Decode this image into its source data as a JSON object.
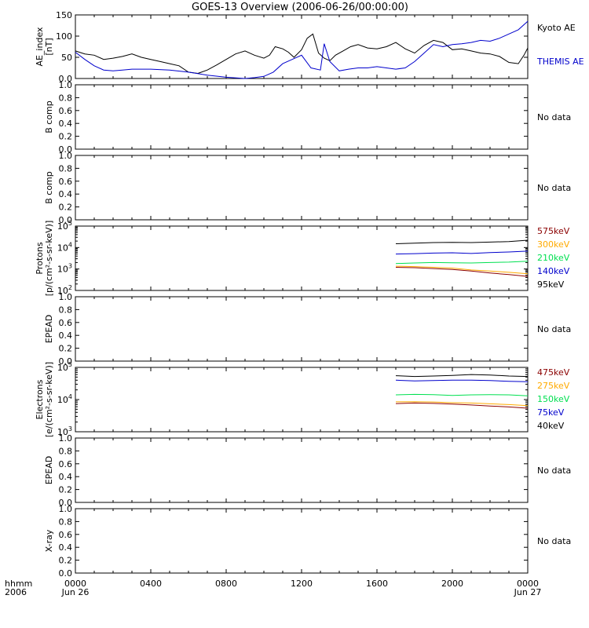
{
  "title": "GOES-13 Overview (2006-06-26/00:00:00)",
  "colors": {
    "black": "#000000",
    "blue": "#0000cc",
    "green": "#00e050",
    "orange": "#ffaa00",
    "darkred": "#8b0000"
  },
  "x_axis": {
    "corner_labels": [
      "hhmm",
      "2006"
    ],
    "ticks": [
      {
        "hours": 0,
        "line1": "0000",
        "line2": "Jun 26"
      },
      {
        "hours": 4,
        "line1": "0400",
        "line2": ""
      },
      {
        "hours": 8,
        "line1": "0800",
        "line2": ""
      },
      {
        "hours": 12,
        "line1": "1200",
        "line2": ""
      },
      {
        "hours": 16,
        "line1": "1600",
        "line2": ""
      },
      {
        "hours": 20,
        "line1": "2000",
        "line2": ""
      },
      {
        "hours": 24,
        "line1": "0000",
        "line2": "Jun 27"
      }
    ],
    "range_hours": [
      0,
      24
    ]
  },
  "chart_data": [
    {
      "type": "line",
      "ylabel": [
        "AE_index",
        "[nT]"
      ],
      "ylim": [
        0,
        150
      ],
      "yticks": [
        0,
        50,
        100,
        150
      ],
      "right_labels": [
        {
          "text": "Kyoto AE",
          "color": "#000000"
        },
        {
          "text": "THEMIS AE",
          "color": "#0000cc"
        }
      ],
      "series": [
        {
          "name": "Kyoto AE",
          "color": "#000000",
          "x": [
            0,
            0.5,
            1,
            1.5,
            2,
            2.5,
            3,
            3.5,
            4,
            4.5,
            5,
            5.5,
            6,
            6.5,
            7,
            7.5,
            8,
            8.5,
            9,
            9.5,
            10,
            10.3,
            10.6,
            11,
            11.3,
            11.6,
            12,
            12.3,
            12.6,
            12.9,
            13.2,
            13.5,
            13.8,
            14.2,
            14.6,
            15,
            15.5,
            16,
            16.5,
            17,
            17.5,
            18,
            18.5,
            19,
            19.5,
            20,
            20.5,
            21,
            21.5,
            22,
            22.5,
            23,
            23.5,
            23.8,
            24
          ],
          "y": [
            65,
            58,
            55,
            45,
            48,
            52,
            58,
            50,
            45,
            40,
            35,
            30,
            15,
            12,
            20,
            32,
            45,
            58,
            65,
            55,
            48,
            55,
            75,
            70,
            62,
            50,
            68,
            95,
            105,
            60,
            48,
            42,
            55,
            65,
            75,
            80,
            72,
            70,
            75,
            85,
            70,
            60,
            78,
            90,
            85,
            68,
            70,
            65,
            60,
            58,
            52,
            38,
            35,
            55,
            72
          ]
        },
        {
          "name": "THEMIS AE",
          "color": "#0000cc",
          "x": [
            0,
            0.5,
            1,
            1.5,
            2,
            2.5,
            3,
            4,
            5,
            6,
            7,
            8,
            9,
            9.5,
            10,
            10.5,
            11,
            11.5,
            12,
            12.5,
            13,
            13.2,
            13.5,
            14,
            14.5,
            15,
            15.5,
            16,
            16.5,
            17,
            17.5,
            18,
            18.5,
            19,
            19.5,
            20,
            20.5,
            21,
            21.5,
            22,
            22.5,
            23,
            23.5,
            24
          ],
          "y": [
            62,
            45,
            30,
            20,
            18,
            20,
            22,
            22,
            20,
            15,
            8,
            3,
            0,
            2,
            5,
            15,
            35,
            45,
            55,
            25,
            20,
            82,
            40,
            18,
            22,
            25,
            25,
            28,
            25,
            22,
            25,
            40,
            60,
            80,
            75,
            80,
            82,
            85,
            90,
            88,
            95,
            105,
            115,
            135
          ]
        }
      ]
    },
    {
      "type": "line",
      "ylabel": [
        "B comp"
      ],
      "ylim": [
        0,
        1
      ],
      "yticks": [
        0,
        0.2,
        0.4,
        0.6,
        0.8,
        1
      ],
      "right_labels": [
        {
          "text": "No data",
          "color": "#000000"
        }
      ],
      "series": []
    },
    {
      "type": "line",
      "ylabel": [
        "B comp"
      ],
      "ylim": [
        0,
        1
      ],
      "yticks": [
        0,
        0.2,
        0.4,
        0.6,
        0.8,
        1
      ],
      "right_labels": [
        {
          "text": "No data",
          "color": "#000000"
        }
      ],
      "series": []
    },
    {
      "type": "line",
      "scale": "log",
      "ylabel": [
        "Protons",
        "[p/(cm²-s-sr-keV)]"
      ],
      "ylim": [
        100,
        100000
      ],
      "yticks": [
        100,
        1000,
        10000,
        100000
      ],
      "right_labels": [
        {
          "text": "575keV",
          "color": "#8b0000"
        },
        {
          "text": "300keV",
          "color": "#ffaa00"
        },
        {
          "text": "210keV",
          "color": "#00e050"
        },
        {
          "text": "140keV",
          "color": "#0000cc"
        },
        {
          "text": "95keV",
          "color": "#000000"
        }
      ],
      "series": [
        {
          "name": "95keV",
          "color": "#000000",
          "x": [
            17,
            18,
            19,
            20,
            21,
            22,
            23,
            24
          ],
          "y": [
            15000,
            16000,
            17000,
            17500,
            17000,
            18000,
            19000,
            22000
          ]
        },
        {
          "name": "140keV",
          "color": "#0000cc",
          "x": [
            17,
            18,
            19,
            20,
            21,
            22,
            23,
            24
          ],
          "y": [
            5000,
            5200,
            5500,
            5700,
            5300,
            5800,
            6200,
            6800
          ]
        },
        {
          "name": "210keV",
          "color": "#00e050",
          "x": [
            17,
            18,
            19,
            20,
            21,
            22,
            23,
            24
          ],
          "y": [
            1800,
            1900,
            2000,
            1950,
            1900,
            2000,
            2100,
            2300
          ]
        },
        {
          "name": "300keV",
          "color": "#ffaa00",
          "x": [
            17,
            18,
            19,
            20,
            21,
            22,
            23,
            24
          ],
          "y": [
            1350,
            1300,
            1200,
            1100,
            900,
            800,
            700,
            600
          ]
        },
        {
          "name": "575keV",
          "color": "#8b0000",
          "x": [
            17,
            18,
            19,
            20,
            21,
            22,
            23,
            24
          ],
          "y": [
            1200,
            1150,
            1050,
            950,
            800,
            650,
            550,
            450
          ]
        }
      ]
    },
    {
      "type": "line",
      "ylabel": [
        "EPEAD"
      ],
      "ylim": [
        0,
        1
      ],
      "yticks": [
        0,
        0.2,
        0.4,
        0.6,
        0.8,
        1
      ],
      "right_labels": [
        {
          "text": "No data",
          "color": "#000000"
        }
      ],
      "series": []
    },
    {
      "type": "line",
      "scale": "log",
      "ylabel": [
        "Electrons",
        "[e/(cm²-s-sr-keV)]"
      ],
      "ylim": [
        1000,
        100000
      ],
      "yticks": [
        1000,
        10000,
        100000
      ],
      "right_labels": [
        {
          "text": "475keV",
          "color": "#8b0000"
        },
        {
          "text": "275keV",
          "color": "#ffaa00"
        },
        {
          "text": "150keV",
          "color": "#00e050"
        },
        {
          "text": "75keV",
          "color": "#0000cc"
        },
        {
          "text": "40keV",
          "color": "#000000"
        }
      ],
      "series": [
        {
          "name": "40keV",
          "color": "#000000",
          "x": [
            17,
            18,
            19,
            20,
            21,
            22,
            23,
            24
          ],
          "y": [
            55000,
            52000,
            54000,
            56000,
            60000,
            58000,
            54000,
            52000
          ]
        },
        {
          "name": "75keV",
          "color": "#0000cc",
          "x": [
            17,
            18,
            19,
            20,
            21,
            22,
            23,
            24
          ],
          "y": [
            40000,
            38000,
            39000,
            40000,
            40000,
            39000,
            37000,
            36000
          ]
        },
        {
          "name": "150keV",
          "color": "#00e050",
          "x": [
            17,
            18,
            19,
            20,
            21,
            22,
            23,
            24
          ],
          "y": [
            14000,
            14500,
            14200,
            13500,
            14000,
            14200,
            14000,
            13000
          ]
        },
        {
          "name": "275keV",
          "color": "#ffaa00",
          "x": [
            17,
            18,
            19,
            20,
            21,
            22,
            23,
            24
          ],
          "y": [
            8500,
            8600,
            8400,
            8000,
            7800,
            7400,
            7000,
            6500
          ]
        },
        {
          "name": "475keV",
          "color": "#8b0000",
          "x": [
            17,
            18,
            19,
            20,
            21,
            22,
            23,
            24
          ],
          "y": [
            7500,
            7800,
            7600,
            7200,
            6800,
            6300,
            5900,
            5400
          ]
        }
      ]
    },
    {
      "type": "line",
      "ylabel": [
        "EPEAD"
      ],
      "ylim": [
        0,
        1
      ],
      "yticks": [
        0,
        0.2,
        0.4,
        0.6,
        0.8,
        1
      ],
      "right_labels": [
        {
          "text": "No data",
          "color": "#000000"
        }
      ],
      "series": []
    },
    {
      "type": "line",
      "ylabel": [
        "X-ray"
      ],
      "ylim": [
        0,
        1
      ],
      "yticks": [
        0,
        0.2,
        0.4,
        0.6,
        0.8,
        1
      ],
      "right_labels": [
        {
          "text": "No data",
          "color": "#000000"
        }
      ],
      "series": []
    }
  ]
}
